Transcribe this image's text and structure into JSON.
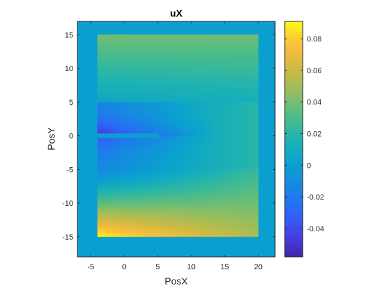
{
  "chart_data": {
    "type": "heatmap",
    "title": "uX",
    "xlabel": "PosX",
    "ylabel": "PosY",
    "xlim": [
      -7,
      22.5
    ],
    "ylim": [
      -18,
      17
    ],
    "x_ticks": [
      -5,
      0,
      5,
      10,
      15,
      20
    ],
    "y_ticks": [
      -15,
      -10,
      -5,
      0,
      5,
      10,
      15
    ],
    "x_tick_labels": [
      "-5",
      "0",
      "5",
      "10",
      "15",
      "20"
    ],
    "y_tick_labels": [
      "-15",
      "-10",
      "-5",
      "0",
      "5",
      "10",
      "15"
    ],
    "colorbar": {
      "colormap": "parula",
      "range": [
        -0.058,
        0.091
      ],
      "ticks": [
        -0.04,
        -0.02,
        0,
        0.02,
        0.04,
        0.06,
        0.08
      ],
      "tick_labels": [
        "-0.04",
        "-0.02",
        "0",
        "0.02",
        "0.04",
        "0.06",
        "0.08"
      ]
    },
    "background_value": 0,
    "domain": {
      "x_range": [
        -4,
        20
      ],
      "y_range": [
        -15,
        15
      ]
    },
    "crack": {
      "x_start": -4,
      "x_end": 5.2,
      "y": 0
    },
    "field_samples": [
      {
        "x": -4,
        "y": 15,
        "value": 0.04
      },
      {
        "x": 20,
        "y": 15,
        "value": 0.038
      },
      {
        "x": -4,
        "y": 5,
        "value": 0.005
      },
      {
        "x": -4,
        "y": 0.8,
        "value": -0.055
      },
      {
        "x": 5,
        "y": 0,
        "value": 0
      },
      {
        "x": 20,
        "y": 0,
        "value": 0.02
      },
      {
        "x": -4,
        "y": -0.8,
        "value": -0.035
      },
      {
        "x": -4,
        "y": -5,
        "value": -0.015
      },
      {
        "x": -4,
        "y": -15,
        "value": 0.09
      },
      {
        "x": 20,
        "y": -15,
        "value": 0.052
      }
    ]
  }
}
